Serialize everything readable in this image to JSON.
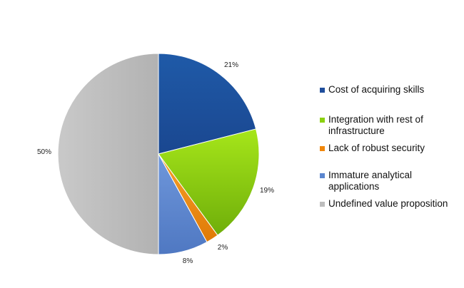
{
  "chart_data": {
    "type": "pie",
    "categories": [
      "Cost of acquiring skills",
      "Integration with rest of infrastructure",
      "Lack of robust security",
      "Immature analytical applications",
      "Undefined value proposition"
    ],
    "values": [
      21,
      19,
      2,
      8,
      50
    ],
    "value_labels": [
      "21%",
      "19%",
      "2%",
      "8%",
      "50%"
    ],
    "colors": [
      "#1f4e9c",
      "#8bd10f",
      "#f0860a",
      "#5b86cf",
      "#bdbdbd"
    ],
    "legend_lines": [
      [
        "Cost of acquiring skills"
      ],
      [
        "Integration with rest of",
        "infrastructure"
      ],
      [
        "Lack of robust security"
      ],
      [
        "Immature analytical",
        "applications"
      ],
      [
        "Undefined value proposition"
      ]
    ],
    "legend_position": "right",
    "start_angle": "12 o'clock, clockwise"
  }
}
